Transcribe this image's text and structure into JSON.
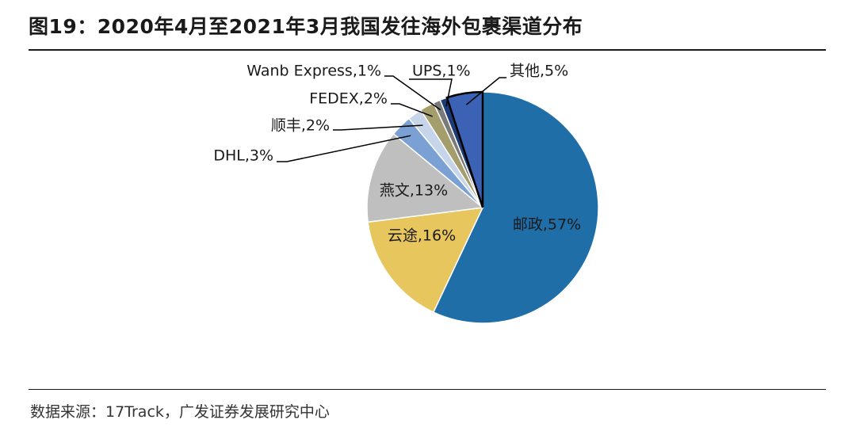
{
  "title": "图19：2020年4月至2021年3月我国发往海外包裹渠道分布",
  "source": "数据来源：17Track，广发证券发展研究中心",
  "colors": {
    "邮政": "#1f6ea8",
    "云途": "#e7c65e",
    "燕文": "#bfbfbf",
    "DHL": "#7ba1d4",
    "顺丰": "#c6d5ea",
    "FEDEX": "#a39e6c",
    "Wanb Express": "#7a7a7a",
    "UPS": "#1c3c78",
    "其他": "#3b62b5"
  },
  "chart_data": {
    "type": "pie",
    "title": "2020年4月至2021年3月我国发往海外包裹渠道分布",
    "slices": [
      {
        "label": "邮政",
        "value": 57,
        "display": "邮政,57%"
      },
      {
        "label": "云途",
        "value": 16,
        "display": "云途,16%"
      },
      {
        "label": "燕文",
        "value": 13,
        "display": "燕文,13%"
      },
      {
        "label": "DHL",
        "value": 3,
        "display": "DHL,3%"
      },
      {
        "label": "顺丰",
        "value": 2,
        "display": "顺丰,2%"
      },
      {
        "label": "FEDEX",
        "value": 2,
        "display": "FEDEX,2%"
      },
      {
        "label": "Wanb Express",
        "value": 1,
        "display": "Wanb Express,1%"
      },
      {
        "label": "UPS",
        "value": 1,
        "display": "UPS,1%"
      },
      {
        "label": "其他",
        "value": 5,
        "display": "其他,5%"
      }
    ],
    "start_angle_deg": 0,
    "direction": "clockwise",
    "legend": "none"
  }
}
